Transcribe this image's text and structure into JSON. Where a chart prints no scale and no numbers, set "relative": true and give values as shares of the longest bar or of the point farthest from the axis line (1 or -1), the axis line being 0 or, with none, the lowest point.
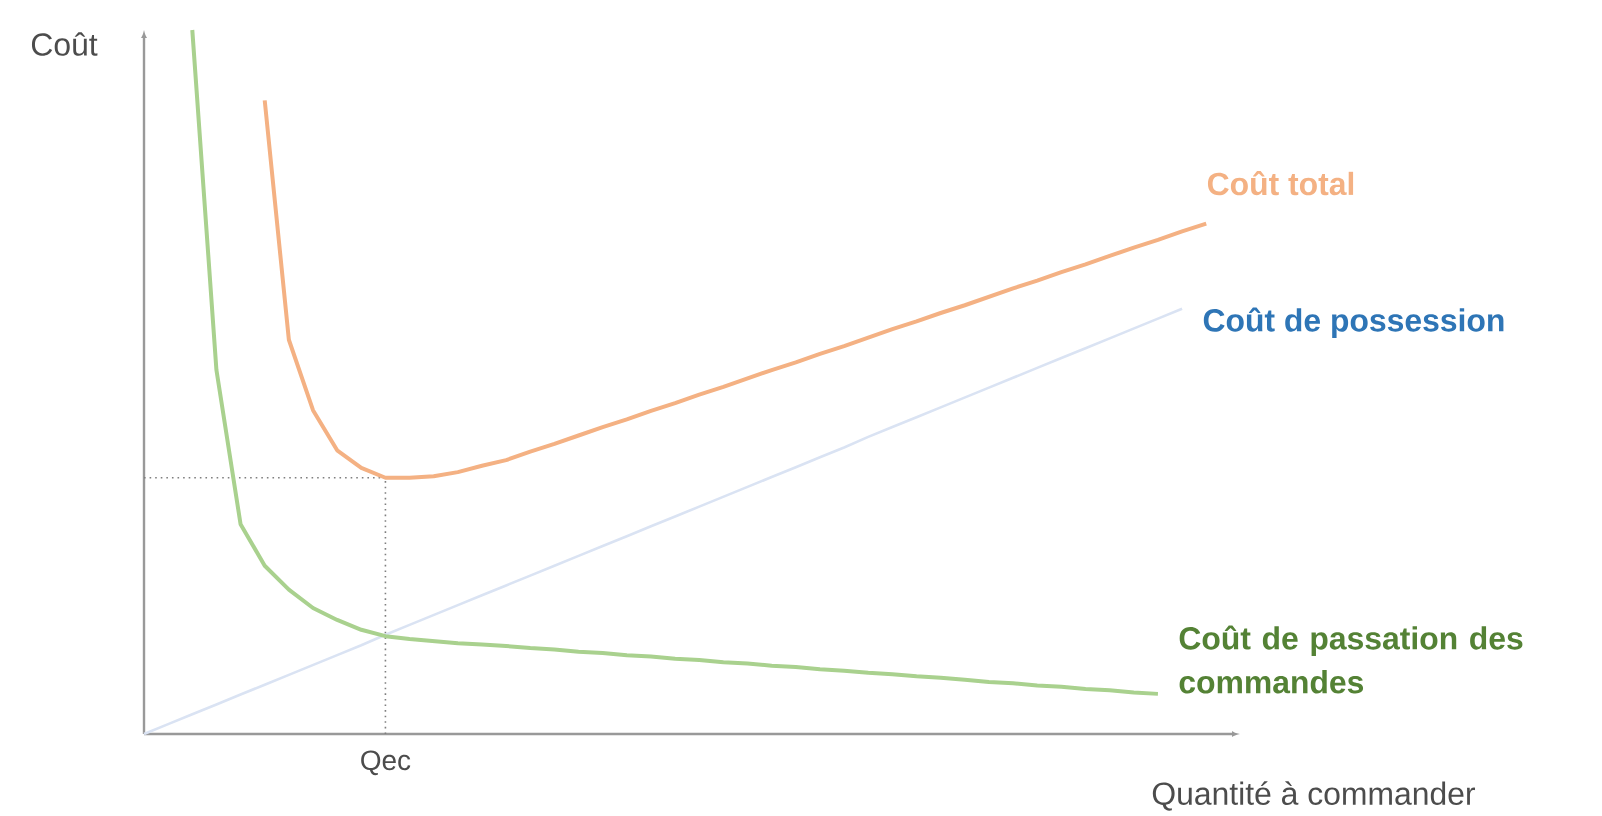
{
  "chart_data": {
    "type": "line",
    "relative": true,
    "xlabel": "Quantité à commander",
    "ylabel": "Coût",
    "categories": [
      null,
      null,
      null,
      null,
      null,
      null,
      null,
      null,
      null,
      null,
      null,
      null,
      null,
      null,
      null,
      null,
      null,
      null,
      null,
      null,
      null,
      null,
      null,
      null,
      null,
      null,
      null,
      null,
      null,
      null,
      null,
      null,
      null,
      null,
      null,
      null,
      null,
      null,
      null,
      null,
      null,
      null,
      null,
      null,
      null
    ],
    "series": [
      {
        "name": "Coût total",
        "color": "#f4b183",
        "values": [
          null,
          null,
          null,
          null,
          null,
          0.9,
          0.56,
          0.46,
          0.403,
          0.378,
          0.364,
          0.364,
          0.366,
          0.372,
          0.381,
          0.389,
          0.401,
          0.412,
          0.424,
          0.436,
          0.447,
          0.459,
          0.47,
          0.482,
          0.493,
          0.505,
          0.517,
          0.528,
          0.54,
          0.551,
          0.563,
          0.575,
          0.586,
          0.598,
          0.609,
          0.621,
          0.633,
          0.644,
          0.656,
          0.667,
          0.679,
          0.691,
          0.702,
          0.714,
          0.725
        ]
      },
      {
        "name": "Coût de possession",
        "color": "#dae3f3",
        "values": [
          0,
          0.014,
          0.028,
          0.042,
          0.056,
          0.07,
          0.084,
          0.098,
          0.112,
          0.126,
          0.141,
          0.155,
          0.169,
          0.183,
          0.197,
          0.211,
          0.225,
          0.239,
          0.253,
          0.267,
          0.281,
          0.295,
          0.309,
          0.323,
          0.337,
          0.351,
          0.365,
          0.379,
          0.393,
          0.407,
          0.422,
          0.436,
          0.45,
          0.464,
          0.478,
          0.492,
          0.506,
          0.52,
          0.534,
          0.548,
          0.562,
          0.576,
          0.59,
          0.604,
          null
        ]
      },
      {
        "name": "Coût de passation des commandes",
        "color": "#a9d18e",
        "values": [
          null,
          null,
          1.0,
          0.517,
          0.298,
          0.239,
          0.205,
          0.179,
          0.162,
          0.148,
          0.139,
          0.135,
          0.132,
          0.129,
          0.127,
          0.125,
          0.122,
          0.12,
          0.117,
          0.115,
          0.112,
          0.11,
          0.107,
          0.105,
          0.102,
          0.1,
          0.097,
          0.095,
          0.092,
          0.09,
          0.087,
          0.085,
          0.082,
          0.08,
          0.077,
          0.074,
          0.072,
          0.069,
          0.067,
          0.064,
          0.062,
          0.059,
          0.057,
          null,
          null
        ]
      }
    ],
    "annotations": [
      "Qec"
    ],
    "ref_lines": [
      {
        "axis": "y",
        "value": 0.364,
        "color": "#7f7f7f",
        "line_style": "dotted"
      }
    ]
  }
}
